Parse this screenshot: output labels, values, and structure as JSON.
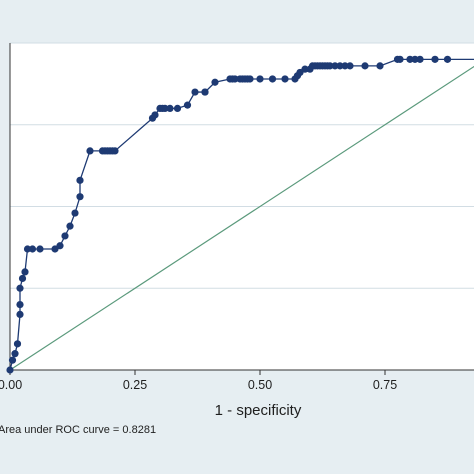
{
  "chart_data": {
    "type": "line",
    "title": "",
    "xlabel": "1 - specificity",
    "ylabel": "",
    "xlim": [
      0,
      1
    ],
    "ylim": [
      0,
      1
    ],
    "x_ticks": [
      "0.00",
      "0.25",
      "0.50",
      "0.75"
    ],
    "x_tick_values": [
      0,
      0.25,
      0.5,
      0.75
    ],
    "grid": true,
    "annotation": "Area under ROC curve = 0.8281",
    "colors": {
      "curve": "#1e3a73",
      "reference": "#5b9a7c",
      "grid": "#d2dde4",
      "plot_bg": "#ffffff",
      "page_bg": "#e6eef2"
    },
    "series": [
      {
        "role": "roc-curve",
        "x": [
          0.0,
          0.005,
          0.01,
          0.015,
          0.02,
          0.02,
          0.02,
          0.025,
          0.03,
          0.035,
          0.045,
          0.06,
          0.09,
          0.1,
          0.11,
          0.12,
          0.13,
          0.14,
          0.14,
          0.16,
          0.185,
          0.19,
          0.195,
          0.2,
          0.205,
          0.21,
          0.285,
          0.29,
          0.3,
          0.305,
          0.31,
          0.32,
          0.335,
          0.355,
          0.37,
          0.39,
          0.39,
          0.41,
          0.44,
          0.445,
          0.45,
          0.46,
          0.465,
          0.47,
          0.475,
          0.48,
          0.5,
          0.525,
          0.55,
          0.57,
          0.575,
          0.58,
          0.59,
          0.6,
          0.605,
          0.61,
          0.615,
          0.62,
          0.625,
          0.63,
          0.635,
          0.64,
          0.65,
          0.66,
          0.67,
          0.68,
          0.71,
          0.74,
          0.775,
          0.78,
          0.8,
          0.81,
          0.82,
          0.85,
          0.875,
          1.0
        ],
        "y": [
          0.0,
          0.03,
          0.05,
          0.08,
          0.17,
          0.2,
          0.25,
          0.28,
          0.3,
          0.37,
          0.37,
          0.37,
          0.37,
          0.38,
          0.41,
          0.44,
          0.48,
          0.53,
          0.58,
          0.67,
          0.67,
          0.67,
          0.67,
          0.67,
          0.67,
          0.67,
          0.77,
          0.78,
          0.8,
          0.8,
          0.8,
          0.8,
          0.8,
          0.81,
          0.85,
          0.85,
          0.85,
          0.88,
          0.89,
          0.89,
          0.89,
          0.89,
          0.89,
          0.89,
          0.89,
          0.89,
          0.89,
          0.89,
          0.89,
          0.89,
          0.9,
          0.91,
          0.92,
          0.92,
          0.93,
          0.93,
          0.93,
          0.93,
          0.93,
          0.93,
          0.93,
          0.93,
          0.93,
          0.93,
          0.93,
          0.93,
          0.93,
          0.93,
          0.95,
          0.95,
          0.95,
          0.95,
          0.95,
          0.95,
          0.95,
          0.95
        ]
      },
      {
        "role": "reference-line",
        "x": [
          0,
          1
        ],
        "y": [
          0,
          1
        ]
      }
    ]
  }
}
